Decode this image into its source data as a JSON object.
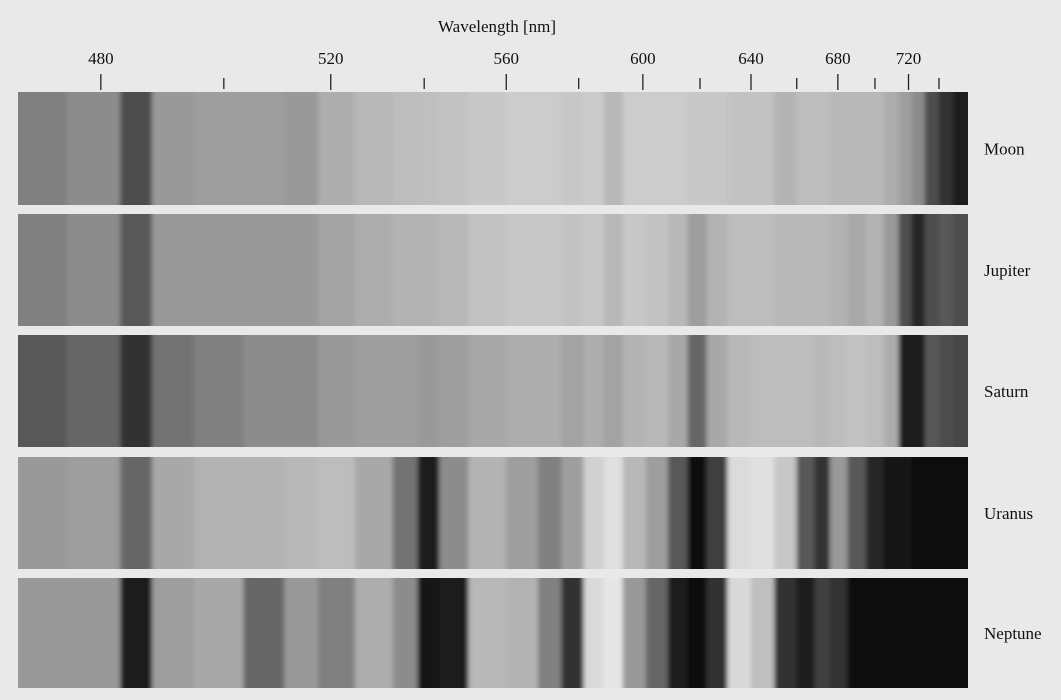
{
  "chart_data": {
    "type": "spectrum",
    "x_label": "Wavelength [nm]",
    "xlim": [
      468,
      761
    ],
    "xticks": [
      480,
      520,
      560,
      600,
      640,
      680,
      720
    ],
    "xminorticks": [
      500,
      540,
      580,
      620,
      660,
      700,
      740
    ],
    "x": [
      470,
      480,
      486,
      490,
      500,
      507,
      515,
      520,
      530,
      536,
      541,
      546,
      555,
      565,
      572,
      578,
      585,
      590,
      597,
      605,
      612,
      619,
      626,
      635,
      645,
      655,
      665,
      672,
      680,
      690,
      700,
      710,
      718,
      726,
      735,
      745,
      755
    ],
    "series": [
      {
        "name": "Moon",
        "values": [
          0.5,
          0.55,
          0.3,
          0.6,
          0.62,
          0.62,
          0.6,
          0.68,
          0.72,
          0.74,
          0.75,
          0.76,
          0.78,
          0.8,
          0.8,
          0.78,
          0.8,
          0.72,
          0.8,
          0.8,
          0.8,
          0.78,
          0.78,
          0.76,
          0.76,
          0.7,
          0.74,
          0.74,
          0.72,
          0.72,
          0.72,
          0.68,
          0.62,
          0.55,
          0.3,
          0.2,
          0.12
        ]
      },
      {
        "name": "Jupiter",
        "values": [
          0.5,
          0.55,
          0.35,
          0.6,
          0.6,
          0.6,
          0.6,
          0.64,
          0.68,
          0.7,
          0.7,
          0.72,
          0.76,
          0.78,
          0.78,
          0.76,
          0.78,
          0.72,
          0.78,
          0.76,
          0.72,
          0.62,
          0.7,
          0.74,
          0.74,
          0.72,
          0.72,
          0.72,
          0.7,
          0.66,
          0.7,
          0.6,
          0.3,
          0.15,
          0.3,
          0.35,
          0.3
        ]
      },
      {
        "name": "Saturn",
        "values": [
          0.35,
          0.4,
          0.2,
          0.45,
          0.5,
          0.55,
          0.55,
          0.6,
          0.62,
          0.62,
          0.6,
          0.62,
          0.66,
          0.68,
          0.68,
          0.64,
          0.68,
          0.64,
          0.7,
          0.72,
          0.66,
          0.4,
          0.66,
          0.72,
          0.74,
          0.74,
          0.74,
          0.72,
          0.74,
          0.76,
          0.74,
          0.68,
          0.1,
          0.12,
          0.35,
          0.3,
          0.28
        ]
      },
      {
        "name": "Uranus",
        "values": [
          0.6,
          0.62,
          0.4,
          0.66,
          0.7,
          0.7,
          0.72,
          0.74,
          0.66,
          0.45,
          0.1,
          0.55,
          0.7,
          0.62,
          0.5,
          0.62,
          0.82,
          0.88,
          0.72,
          0.62,
          0.35,
          0.06,
          0.25,
          0.86,
          0.88,
          0.78,
          0.35,
          0.2,
          0.6,
          0.35,
          0.15,
          0.08,
          0.08,
          0.06,
          0.05,
          0.05,
          0.05
        ]
      },
      {
        "name": "Neptune",
        "values": [
          0.6,
          0.6,
          0.1,
          0.62,
          0.66,
          0.4,
          0.6,
          0.5,
          0.68,
          0.55,
          0.08,
          0.1,
          0.72,
          0.7,
          0.5,
          0.2,
          0.85,
          0.9,
          0.6,
          0.4,
          0.1,
          0.05,
          0.2,
          0.85,
          0.75,
          0.2,
          0.1,
          0.25,
          0.2,
          0.05,
          0.03,
          0.03,
          0.03,
          0.03,
          0.03,
          0.03,
          0.03
        ]
      }
    ]
  }
}
